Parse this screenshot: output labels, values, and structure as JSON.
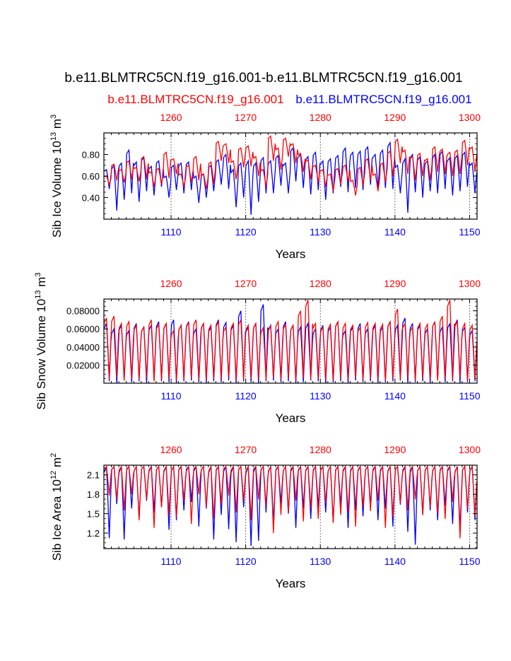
{
  "page": {
    "title": "b.e11.BLMTRC5CN.f19_g16.001-b.e11.BLMTRC5CN.f19_g16.001",
    "legend_red": "b.e11.BLMTRC5CN.f19_g16.001",
    "legend_blue": "b.e11.BLMTRC5CN.f19_g16.001"
  },
  "colors": {
    "red": "#ff0000",
    "blue": "#0000ff",
    "axis": "#000000",
    "grid": "#555555"
  },
  "chart_data": [
    {
      "type": "line",
      "title": "",
      "xlabel": "Years",
      "ylabel_html": [
        "Sib Ice Volume 10",
        "13",
        " m",
        "3"
      ],
      "bottom_axis": {
        "range": [
          1101,
          1151
        ],
        "ticks": [
          1110,
          1120,
          1130,
          1140,
          1150
        ],
        "color": "blue"
      },
      "top_axis": {
        "range": [
          1251,
          1301
        ],
        "ticks": [
          1260,
          1270,
          1280,
          1290,
          1300
        ],
        "color": "red"
      },
      "ylim": [
        0.2,
        1.0
      ],
      "yticks": [
        0.4,
        0.6,
        0.8
      ],
      "ytick_labels": [
        "0.40",
        "0.60",
        "0.80"
      ],
      "series": [
        {
          "name": "b.e11.BLMTRC5CN.f19_g16.001 (top axis, years 1251-1301)",
          "color": "red",
          "values": [
            0.6,
            0.71,
            0.66,
            0.74,
            0.68,
            0.78,
            0.64,
            0.67,
            0.82,
            0.76,
            0.62,
            0.7,
            0.78,
            0.62,
            0.73,
            0.92,
            0.9,
            0.74,
            0.86,
            0.88,
            0.78,
            0.66,
            0.97,
            0.86,
            0.95,
            0.9,
            0.81,
            0.75,
            0.7,
            0.66,
            0.62,
            0.67,
            0.7,
            0.56,
            0.68,
            0.76,
            0.62,
            0.72,
            0.83,
            0.94,
            0.84,
            0.78,
            0.81,
            0.76,
            0.87,
            0.85,
            0.82,
            0.84,
            0.93,
            0.87
          ],
          "min_values": [
            0.52,
            0.56,
            0.54,
            0.57,
            0.55,
            0.57,
            0.5,
            0.52,
            0.58,
            0.62,
            0.5,
            0.54,
            0.56,
            0.48,
            0.53,
            0.74,
            0.72,
            0.57,
            0.68,
            0.69,
            0.6,
            0.5,
            0.74,
            0.66,
            0.78,
            0.72,
            0.64,
            0.57,
            0.54,
            0.5,
            0.46,
            0.52,
            0.55,
            0.42,
            0.51,
            0.56,
            0.46,
            0.54,
            0.6,
            0.72,
            0.62,
            0.56,
            0.6,
            0.56,
            0.64,
            0.62,
            0.6,
            0.62,
            0.7,
            0.64
          ]
        },
        {
          "name": "b.e11.BLMTRC5CN.f19_g16.001 (bottom axis, years 1101-1151)",
          "color": "blue",
          "values": [
            0.66,
            0.7,
            0.72,
            0.84,
            0.73,
            0.77,
            0.69,
            0.74,
            0.6,
            0.7,
            0.72,
            0.73,
            0.6,
            0.62,
            0.7,
            0.75,
            0.8,
            0.66,
            0.72,
            0.74,
            0.72,
            0.77,
            0.74,
            0.79,
            0.72,
            0.86,
            0.8,
            0.78,
            0.82,
            0.74,
            0.76,
            0.79,
            0.86,
            0.82,
            0.83,
            0.87,
            0.8,
            0.84,
            0.91,
            0.7,
            0.76,
            0.8,
            0.78,
            0.74,
            0.8,
            0.83,
            0.77,
            0.79,
            0.82,
            0.72
          ],
          "min_values": [
            0.48,
            0.28,
            0.38,
            0.44,
            0.36,
            0.46,
            0.42,
            0.5,
            0.4,
            0.47,
            0.44,
            0.47,
            0.35,
            0.4,
            0.46,
            0.52,
            0.48,
            0.31,
            0.4,
            0.24,
            0.36,
            0.44,
            0.44,
            0.51,
            0.44,
            0.55,
            0.49,
            0.43,
            0.47,
            0.38,
            0.44,
            0.5,
            0.45,
            0.49,
            0.47,
            0.52,
            0.48,
            0.49,
            0.48,
            0.44,
            0.26,
            0.45,
            0.4,
            0.46,
            0.44,
            0.48,
            0.42,
            0.46,
            0.5,
            0.44
          ]
        }
      ]
    },
    {
      "type": "line",
      "title": "",
      "xlabel": "Years",
      "ylabel_html": [
        "Sib Snow Volume 10",
        "13",
        " m",
        "3"
      ],
      "bottom_axis": {
        "range": [
          1101,
          1151
        ],
        "ticks": [
          1110,
          1120,
          1130,
          1140,
          1150
        ],
        "color": "blue"
      },
      "top_axis": {
        "range": [
          1251,
          1301
        ],
        "ticks": [
          1260,
          1270,
          1280,
          1290,
          1300
        ],
        "color": "red"
      },
      "ylim": [
        0.0,
        0.093
      ],
      "yticks": [
        0.02,
        0.04,
        0.06,
        0.08
      ],
      "ytick_labels": [
        "0.02000",
        "0.04000",
        "0.06000",
        "0.08000"
      ],
      "series": [
        {
          "name": "b.e11.BLMTRC5CN.f19_g16.001 (top axis, years 1251-1301)",
          "color": "red",
          "values": [
            0.072,
            0.074,
            0.066,
            0.068,
            0.064,
            0.062,
            0.07,
            0.065,
            0.066,
            0.058,
            0.064,
            0.067,
            0.07,
            0.066,
            0.064,
            0.068,
            0.062,
            0.066,
            0.07,
            0.064,
            0.066,
            0.061,
            0.063,
            0.068,
            0.065,
            0.064,
            0.08,
            0.092,
            0.066,
            0.062,
            0.065,
            0.068,
            0.066,
            0.064,
            0.062,
            0.067,
            0.066,
            0.065,
            0.068,
            0.082,
            0.066,
            0.062,
            0.066,
            0.065,
            0.068,
            0.074,
            0.092,
            0.068,
            0.066,
            0.064
          ],
          "min_values": [
            0.004,
            0.006,
            0.003,
            0.005,
            0.004,
            0.006,
            0.002,
            0.004,
            0.005,
            0.003,
            0.004,
            0.006,
            0.004,
            0.003,
            0.005,
            0.004,
            0.006,
            0.003,
            0.004,
            0.005,
            0.004,
            0.003,
            0.006,
            0.004,
            0.005,
            0.003,
            0.006,
            0.004,
            0.005,
            0.004,
            0.003,
            0.005,
            0.004,
            0.006,
            0.003,
            0.005,
            0.004,
            0.003,
            0.005,
            0.004,
            0.006,
            0.003,
            0.005,
            0.004,
            0.003,
            0.005,
            0.004,
            0.006,
            0.003,
            0.004
          ]
        },
        {
          "name": "b.e11.BLMTRC5CN.f19_g16.001 (bottom axis, years 1101-1151)",
          "color": "blue",
          "values": [
            0.066,
            0.06,
            0.064,
            0.058,
            0.066,
            0.062,
            0.064,
            0.068,
            0.066,
            0.07,
            0.064,
            0.068,
            0.06,
            0.066,
            0.062,
            0.07,
            0.067,
            0.064,
            0.08,
            0.062,
            0.066,
            0.087,
            0.064,
            0.06,
            0.068,
            0.064,
            0.062,
            0.066,
            0.06,
            0.064,
            0.062,
            0.068,
            0.058,
            0.062,
            0.066,
            0.06,
            0.064,
            0.062,
            0.068,
            0.064,
            0.072,
            0.066,
            0.064,
            0.06,
            0.068,
            0.062,
            0.066,
            0.07,
            0.062,
            0.058
          ],
          "min_values": [
            0.002,
            0.0,
            0.003,
            0.001,
            0.002,
            0.0,
            0.003,
            0.002,
            0.001,
            0.0,
            0.002,
            0.003,
            0.001,
            0.0,
            0.002,
            0.001,
            0.003,
            0.0,
            0.002,
            0.001,
            0.0,
            0.002,
            0.003,
            0.001,
            0.002,
            0.0,
            0.001,
            0.003,
            0.002,
            0.0,
            0.001,
            0.002,
            0.0,
            0.003,
            0.001,
            0.002,
            0.0,
            0.001,
            0.002,
            0.003,
            0.0,
            0.001,
            0.002,
            0.0,
            0.003,
            0.001,
            0.002,
            0.0,
            0.001,
            0.002
          ]
        }
      ]
    },
    {
      "type": "line",
      "title": "",
      "xlabel": "Years",
      "ylabel_html": [
        "Sib Ice Area 10",
        "12",
        " m",
        "2"
      ],
      "bottom_axis": {
        "range": [
          1101,
          1151
        ],
        "ticks": [
          1110,
          1120,
          1130,
          1140,
          1150
        ],
        "color": "blue"
      },
      "top_axis": {
        "range": [
          1251,
          1301
        ],
        "ticks": [
          1260,
          1270,
          1280,
          1290,
          1300
        ],
        "color": "red"
      },
      "ylim": [
        0.96,
        2.25
      ],
      "yticks": [
        1.2,
        1.5,
        1.8,
        2.1
      ],
      "ytick_labels": [
        "1.2",
        "1.5",
        "1.8",
        "2.1"
      ],
      "series": [
        {
          "name": "b.e11.BLMTRC5CN.f19_g16.001 (top axis, years 1251-1301)",
          "color": "red",
          "values": [
            2.23,
            2.23,
            2.23,
            2.23,
            2.23,
            2.23,
            2.23,
            2.23,
            2.23,
            2.23,
            2.23,
            2.23,
            2.23,
            2.23,
            2.23,
            2.23,
            2.23,
            2.23,
            2.23,
            2.23,
            2.23,
            2.23,
            2.23,
            2.23,
            2.23,
            2.23,
            2.23,
            2.23,
            2.23,
            2.23,
            2.23,
            2.23,
            2.23,
            2.23,
            2.23,
            2.23,
            2.23,
            2.23,
            2.23,
            2.23,
            2.23,
            2.23,
            2.23,
            2.23,
            2.23,
            2.23,
            2.23,
            2.23,
            2.23,
            2.23
          ],
          "min_values": [
            1.78,
            1.72,
            1.55,
            1.8,
            1.4,
            1.72,
            1.28,
            1.6,
            1.48,
            1.45,
            1.7,
            1.34,
            1.8,
            1.6,
            1.42,
            1.65,
            1.78,
            1.52,
            1.7,
            1.4,
            1.72,
            1.62,
            1.2,
            1.48,
            1.52,
            1.7,
            1.38,
            1.58,
            1.42,
            1.66,
            1.36,
            1.48,
            1.52,
            1.3,
            1.6,
            1.54,
            1.7,
            1.28,
            1.45,
            1.66,
            1.55,
            1.72,
            1.48,
            1.6,
            1.5,
            1.42,
            1.68,
            1.12,
            1.58,
            1.46
          ]
        },
        {
          "name": "b.e11.BLMTRC5CN.f19_g16.001 (bottom axis, years 1101-1151)",
          "color": "blue",
          "values": [
            2.23,
            2.23,
            2.23,
            2.23,
            2.23,
            2.23,
            2.23,
            2.23,
            2.23,
            2.23,
            2.23,
            2.23,
            2.23,
            2.23,
            2.23,
            2.23,
            2.23,
            2.23,
            2.23,
            2.23,
            2.23,
            2.23,
            2.23,
            2.23,
            2.23,
            2.23,
            2.23,
            2.23,
            2.23,
            2.23,
            2.23,
            2.23,
            2.23,
            2.23,
            2.23,
            2.23,
            2.23,
            2.23,
            2.23,
            2.23,
            2.23,
            2.23,
            2.23,
            2.23,
            2.23,
            2.23,
            2.23,
            2.23,
            2.23,
            2.23
          ],
          "min_values": [
            1.12,
            1.65,
            1.1,
            1.58,
            1.42,
            1.7,
            1.52,
            1.6,
            1.25,
            1.4,
            1.55,
            1.68,
            1.3,
            1.58,
            1.1,
            1.48,
            1.26,
            1.06,
            1.6,
            1.0,
            1.08,
            1.52,
            1.36,
            1.66,
            1.5,
            1.28,
            1.58,
            1.42,
            1.6,
            1.52,
            1.36,
            1.62,
            1.28,
            1.55,
            1.46,
            1.62,
            1.4,
            1.58,
            1.3,
            1.64,
            1.22,
            1.02,
            1.48,
            1.55,
            1.4,
            1.62,
            1.34,
            1.26,
            1.52,
            1.4
          ]
        }
      ]
    }
  ]
}
